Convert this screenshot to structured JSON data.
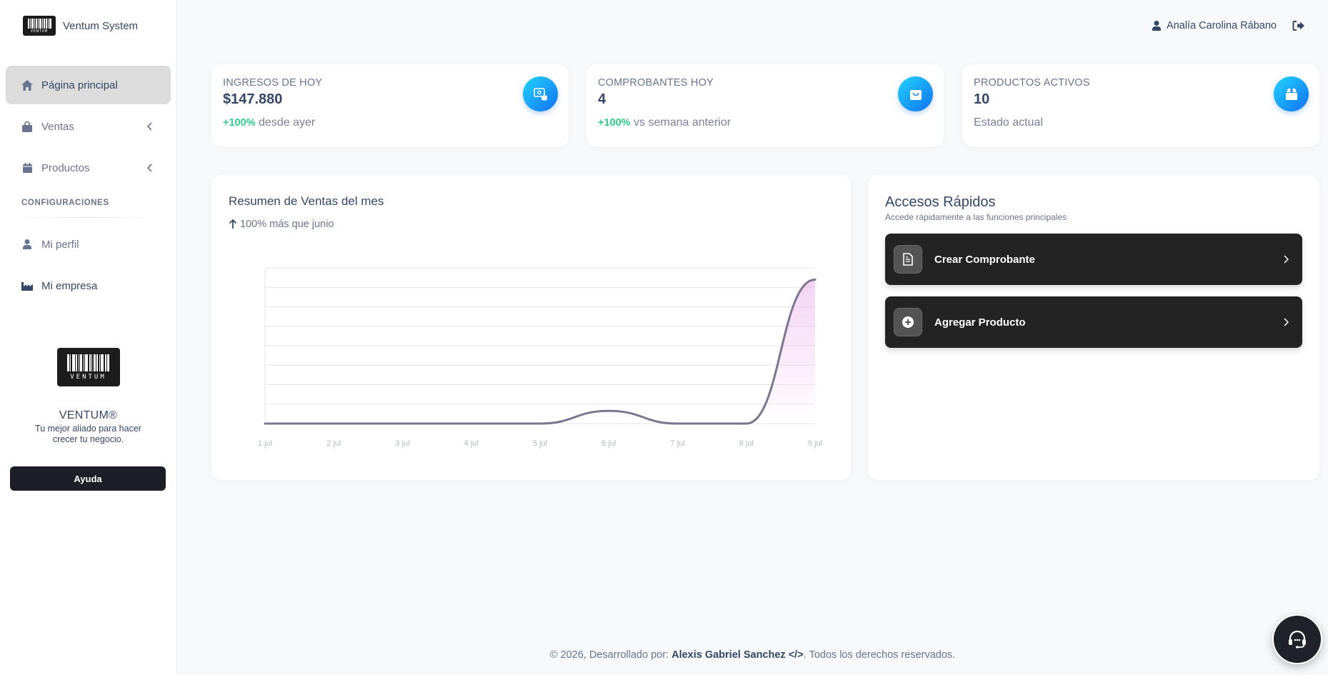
{
  "app": {
    "brand_name": "Ventum System",
    "logo_word": "VENTUM"
  },
  "sidebar": {
    "items": [
      {
        "label": "Página principal",
        "icon": "home-icon"
      },
      {
        "label": "Ventas",
        "icon": "bag-icon"
      },
      {
        "label": "Productos",
        "icon": "calendar-icon"
      }
    ],
    "section_title": "CONFIGURACIONES",
    "config_items": [
      {
        "label": "Mi perfil",
        "icon": "user-icon"
      },
      {
        "label": "Mi empresa",
        "icon": "industry-icon"
      }
    ],
    "promo": {
      "title": "VENTUM®",
      "tagline": "Tu mejor aliado para hacer crecer tu negocio."
    },
    "help_label": "Ayuda"
  },
  "header": {
    "user_name": "Analía Carolina Rábano"
  },
  "stats": [
    {
      "label": "INGRESOS DE HOY",
      "value": "$147.880",
      "change": "+100%",
      "note": "desde ayer",
      "icon": "money-coins-icon"
    },
    {
      "label": "COMPROBANTES HOY",
      "value": "4",
      "change": "+100%",
      "note": "vs semana anterior",
      "icon": "shopping-bag-icon"
    },
    {
      "label": "PRODUCTOS ACTIVOS",
      "value": "10",
      "change": "",
      "note": "Estado actual",
      "icon": "box-icon"
    }
  ],
  "chart": {
    "title": "Resumen de Ventas del mes",
    "subtitle": "100% más que junio"
  },
  "chart_data": {
    "type": "line",
    "title": "Resumen de Ventas del mes",
    "categories": [
      "1 jul",
      "2 jul",
      "3 jul",
      "4 jul",
      "5 jul",
      "6 jul",
      "7 jul",
      "8 jul",
      "9 jul"
    ],
    "series": [
      {
        "values": [
          0,
          0,
          0,
          0,
          0,
          13000,
          0,
          0,
          147880
        ]
      }
    ],
    "ylim": [
      0,
      160000
    ],
    "grid": true,
    "colors": {
      "line": "#7a7690",
      "fill": "#e59ee6"
    }
  },
  "quick_access": {
    "title": "Accesos Rápidos",
    "description": "Accede rápidamente a las funciones principales",
    "buttons": [
      {
        "label": "Crear Comprobante",
        "icon": "file-invoice-icon"
      },
      {
        "label": "Agregar Producto",
        "icon": "plus-circle-icon"
      }
    ]
  },
  "footer": {
    "prefix": "© 2026, Desarrollado por: ",
    "author": "Alexis Gabriel Sanchez",
    "code": "</>",
    "suffix": ". Todos los derechos reservados."
  },
  "colors": {
    "accent_start": "#21d4fd",
    "accent_end": "#1171ef",
    "positive": "#2dce89",
    "dark": "#232323"
  }
}
